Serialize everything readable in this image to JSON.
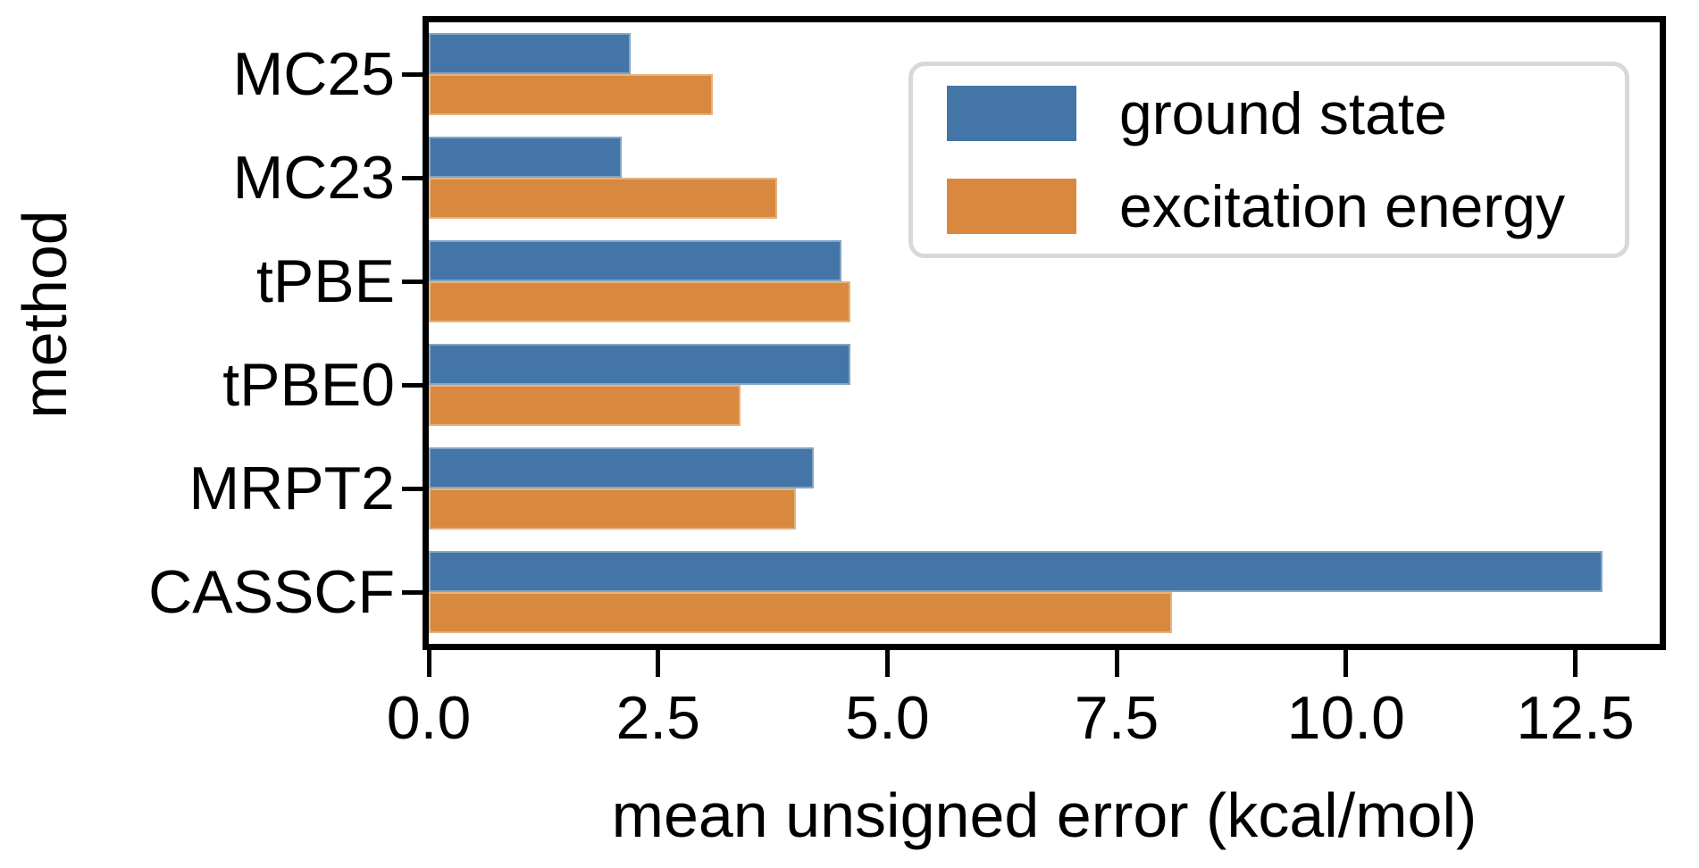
{
  "colors": {
    "ground_state": "#4376a6",
    "excitation_energy": "#d8893f",
    "axis": "#000000",
    "legend_border": "#d8d8d8",
    "background": "#ffffff"
  },
  "chart_data": {
    "type": "bar",
    "orientation": "horizontal",
    "categories": [
      "MC25",
      "MC23",
      "tPBE",
      "tPBE0",
      "MRPT2",
      "CASSCF"
    ],
    "series": [
      {
        "name": "ground state",
        "color": "#4376a6",
        "values": [
          2.2,
          2.1,
          4.5,
          4.6,
          4.2,
          12.8
        ]
      },
      {
        "name": "excitation energy",
        "color": "#d8893f",
        "values": [
          3.1,
          3.8,
          4.6,
          3.4,
          4.0,
          8.1
        ]
      }
    ],
    "xlabel": "mean unsigned error (kcal/mol)",
    "ylabel": "method",
    "xlim": [
      0,
      13.42
    ],
    "xticks": [
      0.0,
      2.5,
      5.0,
      7.5,
      10.0,
      12.5
    ],
    "xtick_labels": [
      "0.0",
      "2.5",
      "5.0",
      "7.5",
      "10.0",
      "12.5"
    ],
    "grid": false,
    "legend": {
      "position": "upper right",
      "entries": [
        "ground state",
        "excitation energy"
      ]
    }
  }
}
